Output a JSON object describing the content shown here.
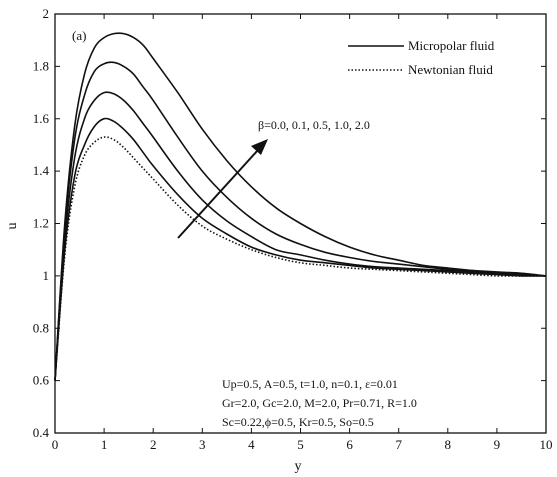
{
  "panel_tag": "(a)",
  "legend": {
    "solid_label": "Micropolar fluid",
    "dotted_label": "Newtonian fluid"
  },
  "arrow_label": "β=0.0, 0.1, 0.5, 1.0, 2.0",
  "parameters": [
    "Up=0.5, A=0.5, t=1.0, n=0.1, ε=0.01",
    "Gr=2.0, Gc=2.0, M=2.0, Pr=0.71, R=1.0",
    "Sc=0.22,ϕ=0.5, Kr=0.5, So=0.5"
  ],
  "chart_data": {
    "type": "line",
    "title": "",
    "xlabel": "y",
    "ylabel": "u",
    "xlim": [
      0,
      10
    ],
    "ylim": [
      0.4,
      2.0
    ],
    "xticks": [
      0,
      1,
      2,
      3,
      4,
      5,
      6,
      7,
      8,
      9,
      10
    ],
    "yticks": [
      0.4,
      0.6,
      0.8,
      1.0,
      1.2,
      1.4,
      1.6,
      1.8,
      2.0
    ],
    "ytick_labels": [
      "0.4",
      "0.6",
      "0.8",
      "1",
      "1.2",
      "1.4",
      "1.6",
      "1.8",
      "2"
    ],
    "grid": false,
    "legend_position": "top-right",
    "x": [
      0,
      0.2,
      0.4,
      0.6,
      0.8,
      1.0,
      1.2,
      1.4,
      1.6,
      1.8,
      2.0,
      2.5,
      3.0,
      3.5,
      4.0,
      4.5,
      5.0,
      5.5,
      6.0,
      6.5,
      7.0,
      7.5,
      8.0,
      8.5,
      9.0,
      9.5,
      10.0
    ],
    "series": [
      {
        "style": "solid",
        "values": [
          0.6,
          1.1,
          1.38,
          1.5,
          1.57,
          1.6,
          1.59,
          1.56,
          1.52,
          1.47,
          1.42,
          1.31,
          1.22,
          1.16,
          1.11,
          1.08,
          1.06,
          1.05,
          1.04,
          1.03,
          1.025,
          1.02,
          1.015,
          1.01,
          1.005,
          1.0,
          1.0
        ]
      },
      {
        "style": "solid",
        "values": [
          0.6,
          1.14,
          1.45,
          1.6,
          1.67,
          1.7,
          1.695,
          1.67,
          1.63,
          1.58,
          1.53,
          1.4,
          1.29,
          1.21,
          1.15,
          1.1,
          1.08,
          1.06,
          1.045,
          1.035,
          1.03,
          1.025,
          1.02,
          1.015,
          1.01,
          1.005,
          1.0
        ]
      },
      {
        "style": "solid",
        "values": [
          0.6,
          1.18,
          1.52,
          1.69,
          1.78,
          1.81,
          1.815,
          1.8,
          1.77,
          1.72,
          1.67,
          1.53,
          1.4,
          1.3,
          1.22,
          1.16,
          1.12,
          1.09,
          1.07,
          1.055,
          1.045,
          1.035,
          1.025,
          1.02,
          1.015,
          1.01,
          1.0
        ]
      },
      {
        "style": "solid",
        "values": [
          0.6,
          1.2,
          1.57,
          1.77,
          1.87,
          1.91,
          1.925,
          1.925,
          1.91,
          1.88,
          1.83,
          1.7,
          1.56,
          1.44,
          1.34,
          1.26,
          1.2,
          1.15,
          1.11,
          1.08,
          1.06,
          1.04,
          1.03,
          1.02,
          1.01,
          1.005,
          1.0
        ]
      },
      {
        "style": "dotted",
        "values": [
          0.6,
          1.08,
          1.34,
          1.46,
          1.51,
          1.53,
          1.52,
          1.49,
          1.45,
          1.41,
          1.37,
          1.27,
          1.19,
          1.14,
          1.1,
          1.07,
          1.05,
          1.04,
          1.03,
          1.025,
          1.02,
          1.015,
          1.01,
          1.005,
          1.0,
          1.0,
          1.0
        ]
      }
    ]
  }
}
